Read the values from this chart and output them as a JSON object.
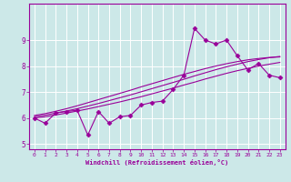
{
  "x_data": [
    0,
    1,
    2,
    3,
    4,
    5,
    6,
    7,
    8,
    9,
    10,
    11,
    12,
    13,
    14,
    15,
    16,
    17,
    18,
    19,
    20,
    21,
    22,
    23
  ],
  "y_main": [
    6.0,
    5.8,
    6.2,
    6.25,
    6.3,
    5.35,
    6.25,
    5.8,
    6.05,
    6.1,
    6.5,
    6.6,
    6.65,
    7.1,
    7.65,
    9.45,
    9.0,
    8.85,
    9.0,
    8.4,
    7.85,
    8.1,
    7.65,
    7.55
  ],
  "y_trend1": [
    6.0,
    6.05,
    6.12,
    6.19,
    6.27,
    6.35,
    6.44,
    6.53,
    6.62,
    6.72,
    6.82,
    6.93,
    7.04,
    7.15,
    7.27,
    7.38,
    7.5,
    7.61,
    7.72,
    7.82,
    7.91,
    8.0,
    8.07,
    8.14
  ],
  "y_trend2": [
    6.05,
    6.11,
    6.19,
    6.27,
    6.36,
    6.46,
    6.56,
    6.67,
    6.78,
    6.89,
    7.01,
    7.13,
    7.25,
    7.37,
    7.49,
    7.62,
    7.74,
    7.86,
    7.97,
    8.07,
    8.17,
    8.25,
    8.32,
    8.37
  ],
  "y_trend3": [
    6.1,
    6.17,
    6.26,
    6.36,
    6.47,
    6.59,
    6.71,
    6.83,
    6.95,
    7.07,
    7.2,
    7.32,
    7.44,
    7.56,
    7.68,
    7.79,
    7.9,
    8.0,
    8.09,
    8.17,
    8.24,
    8.29,
    8.33,
    8.35
  ],
  "line_color": "#990099",
  "bg_color": "#cce8e8",
  "grid_color": "#ffffff",
  "xlabel": "Windchill (Refroidissement éolien,°C)",
  "ylim": [
    4.8,
    10.4
  ],
  "xlim": [
    -0.5,
    23.5
  ],
  "yticks": [
    5,
    6,
    7,
    8,
    9
  ],
  "xticks": [
    0,
    1,
    2,
    3,
    4,
    5,
    6,
    7,
    8,
    9,
    10,
    11,
    12,
    13,
    14,
    15,
    16,
    17,
    18,
    19,
    20,
    21,
    22,
    23
  ]
}
